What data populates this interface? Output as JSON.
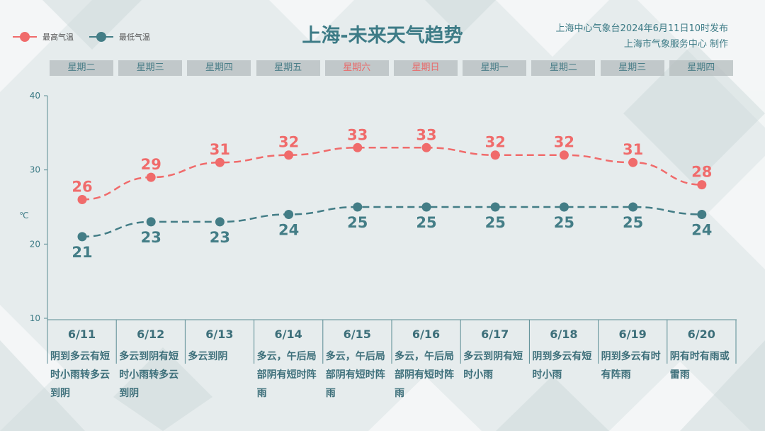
{
  "header": {
    "title": "上海-未来天气趋势",
    "issuer_line1": "上海中心气象台2024年6月11日10时发布",
    "issuer_line2": "上海市气象服务中心 制作"
  },
  "legend": {
    "high_label": "最高气温",
    "low_label": "最低气温"
  },
  "colors": {
    "high": "#f06b6b",
    "low": "#437d86",
    "axis": "#5a8c94"
  },
  "unit_label": "℃",
  "chart_data": {
    "type": "line",
    "title": "上海-未来天气趋势",
    "ylabel": "℃",
    "ylim": [
      10,
      40
    ],
    "yticks": [
      10,
      20,
      30,
      40
    ],
    "grid": false,
    "legend_position": "top-left",
    "categories": [
      "6/11",
      "6/12",
      "6/13",
      "6/14",
      "6/15",
      "6/16",
      "6/17",
      "6/18",
      "6/19",
      "6/20"
    ],
    "series": [
      {
        "name": "最高气温",
        "values": [
          26,
          29,
          31,
          32,
          33,
          33,
          32,
          32,
          31,
          28
        ]
      },
      {
        "name": "最低气温",
        "values": [
          21,
          23,
          23,
          24,
          25,
          25,
          25,
          25,
          25,
          24
        ]
      }
    ]
  },
  "weekdays": [
    {
      "label": "星期二",
      "weekend": false
    },
    {
      "label": "星期三",
      "weekend": false
    },
    {
      "label": "星期四",
      "weekend": false
    },
    {
      "label": "星期五",
      "weekend": false
    },
    {
      "label": "星期六",
      "weekend": true
    },
    {
      "label": "星期日",
      "weekend": true
    },
    {
      "label": "星期一",
      "weekend": false
    },
    {
      "label": "星期二",
      "weekend": false
    },
    {
      "label": "星期三",
      "weekend": false
    },
    {
      "label": "星期四",
      "weekend": false
    }
  ],
  "forecast": [
    {
      "date": "6/11",
      "desc": "阴到多云有短时小雨转多云到阴"
    },
    {
      "date": "6/12",
      "desc": "多云到阴有短时小雨转多云到阴"
    },
    {
      "date": "6/13",
      "desc": "多云到阴"
    },
    {
      "date": "6/14",
      "desc": "多云，午后局部阴有短时阵雨"
    },
    {
      "date": "6/15",
      "desc": "多云，午后局部阴有短时阵雨"
    },
    {
      "date": "6/16",
      "desc": "多云，午后局部阴有短时阵雨"
    },
    {
      "date": "6/17",
      "desc": "多云到阴有短时小雨"
    },
    {
      "date": "6/18",
      "desc": "阴到多云有短时小雨"
    },
    {
      "date": "6/19",
      "desc": "阴到多云有时有阵雨"
    },
    {
      "date": "6/20",
      "desc": "阴有时有雨或雷雨"
    }
  ]
}
